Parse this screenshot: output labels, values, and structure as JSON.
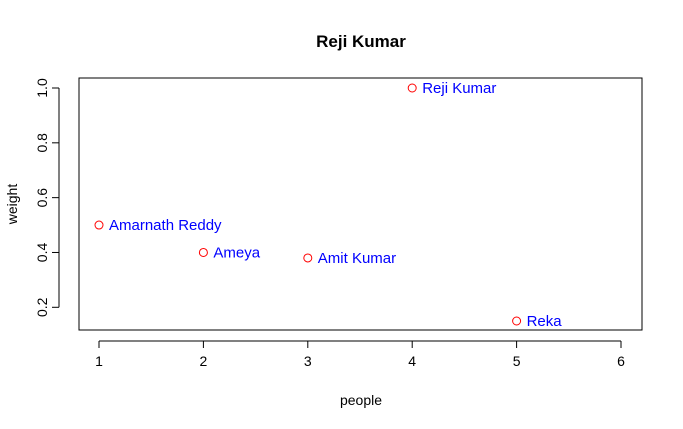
{
  "chart_data": {
    "type": "scatter",
    "title": "Reji Kumar",
    "xlabel": "people",
    "ylabel": "weight",
    "xlim": [
      1,
      6
    ],
    "ylim": [
      0.15,
      1.0
    ],
    "x_ticks": [
      "1",
      "2",
      "3",
      "4",
      "5",
      "6"
    ],
    "y_ticks": [
      "0.2",
      "0.4",
      "0.6",
      "0.8",
      "1.0"
    ],
    "grid": false,
    "point_color": "#ff0000",
    "label_color": "#0000ff",
    "points": [
      {
        "x": 1,
        "y": 0.5,
        "label": "Amarnath Reddy"
      },
      {
        "x": 2,
        "y": 0.4,
        "label": "Ameya"
      },
      {
        "x": 3,
        "y": 0.38,
        "label": "Amit Kumar"
      },
      {
        "x": 4,
        "y": 1.0,
        "label": "Reji Kumar"
      },
      {
        "x": 5,
        "y": 0.15,
        "label": "Reka"
      }
    ]
  }
}
